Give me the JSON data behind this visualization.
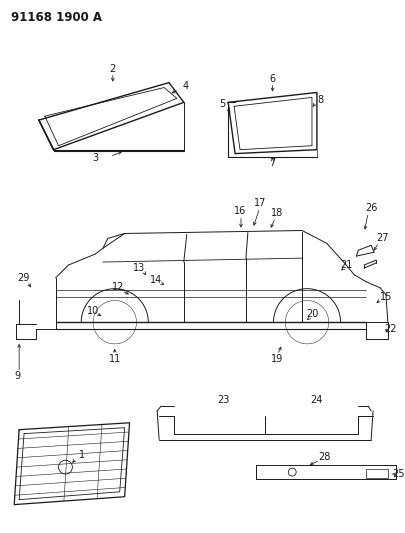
{
  "title": "91168 1900 A",
  "bg_color": "#ffffff",
  "line_color": "#1a1a1a",
  "title_fontsize": 8.5,
  "label_fontsize": 7,
  "fig_width": 4.06,
  "fig_height": 5.33,
  "dpi": 100
}
